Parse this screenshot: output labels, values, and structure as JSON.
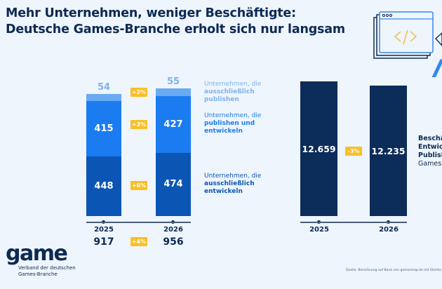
{
  "title": [
    "Mehr Unternehmen, weniger Beschäftigte:",
    "Deutsche Games-Branche erholt sich nur langsam"
  ],
  "colors": {
    "background": "#eef5fd",
    "navy": "#0d2a52",
    "publish_only": "#6aaaf3",
    "publish_develop": "#1a7cf0",
    "develop_only": "#0b55b5",
    "employees": "#0c2c5a",
    "badge": "#fbbf24"
  },
  "chart_data": [
    {
      "type": "bar",
      "stacked": true,
      "categories": [
        "2025",
        "2026"
      ],
      "series": [
        {
          "name": "Unternehmen, die ausschließlich entwickeln",
          "values": [
            448,
            474
          ],
          "change": "+6%"
        },
        {
          "name": "Unternehmen, die publishen und entwickeln",
          "values": [
            415,
            427
          ],
          "change": "+3%"
        },
        {
          "name": "Unternehmen, die ausschließlich publishen",
          "values": [
            54,
            55
          ],
          "change": "+2%"
        }
      ],
      "totals": [
        917,
        956
      ],
      "total_change": "+4%",
      "legend_lines": [
        [
          "Unternehmen, die",
          "ausschließlich",
          "publishen"
        ],
        [
          "Unternehmen, die",
          "publishen und",
          "entwickeln"
        ],
        [
          "Unternehmen, die",
          "ausschließlich",
          "entwickeln"
        ]
      ]
    },
    {
      "type": "bar",
      "categories": [
        "2025",
        "2026"
      ],
      "values": [
        12659,
        12235
      ],
      "value_labels": [
        "12.659",
        "12.235"
      ],
      "change": "-3%",
      "label_lines": [
        "Beschä",
        "Entwick",
        "Publish",
        "Games"
      ]
    }
  ],
  "logo": {
    "text": "game",
    "subtitle": [
      "Verband der deutschen",
      "Games-Branche"
    ]
  },
  "source": "Quelle: Berechnung auf Basis von gamesmap.de mit Stichta"
}
